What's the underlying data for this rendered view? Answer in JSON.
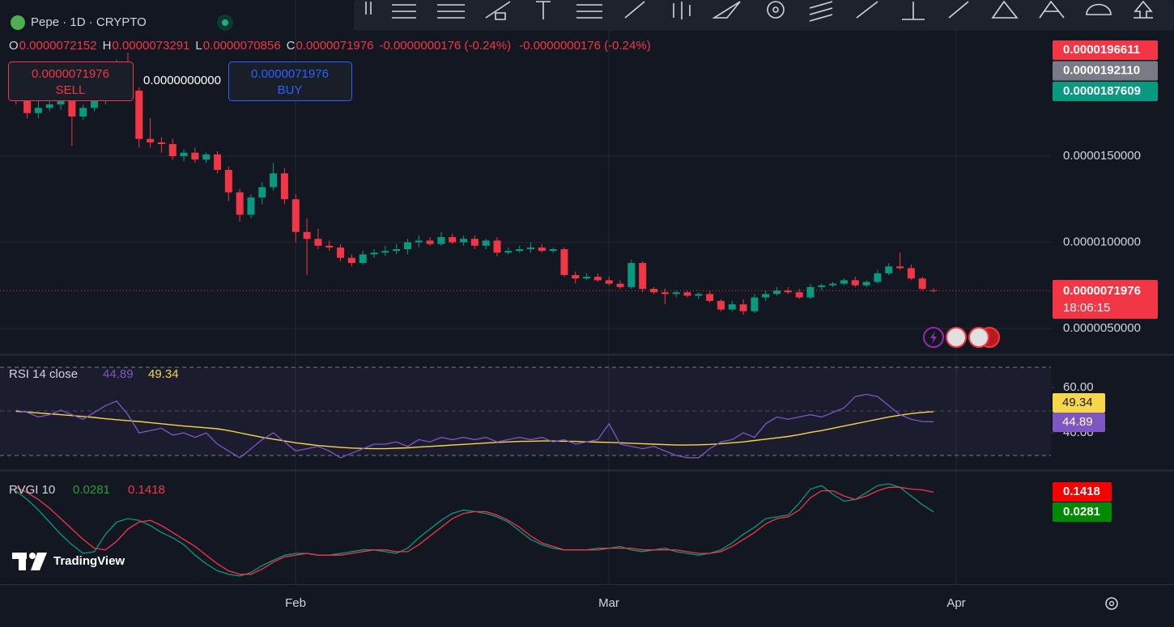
{
  "header": {
    "symbol": "Pepe · 1D · CRYPTO",
    "ohlc": [
      {
        "key": "O",
        "value": "0.0000072152"
      },
      {
        "key": "H",
        "value": "0.0000073291"
      },
      {
        "key": "L",
        "value": "0.0000070856"
      },
      {
        "key": "C",
        "value": "0.0000071976"
      }
    ],
    "changes": [
      "-0.0000000176 (-0.24%)",
      "-0.0000000176 (-0.24%)"
    ]
  },
  "trade": {
    "sell_price": "0.0000071976",
    "sell": "SELL",
    "spread": "0.0000000000",
    "buy_price": "0.0000071976",
    "buy": "BUY"
  },
  "price_pane": {
    "candles": [
      [
        1.98e-05,
        2e-05,
        1.8e-05,
        1.83e-05
      ],
      [
        1.83e-05,
        1.88e-05,
        1.72e-05,
        1.75e-05
      ],
      [
        1.75e-05,
        1.82e-05,
        1.72e-05,
        1.78e-05
      ],
      [
        1.78e-05,
        1.83e-05,
        1.76e-05,
        1.8e-05
      ],
      [
        1.8e-05,
        1.84e-05,
        1.77e-05,
        1.82e-05
      ],
      [
        1.82e-05,
        1.86e-05,
        1.56e-05,
        1.73e-05
      ],
      [
        1.73e-05,
        1.8e-05,
        1.71e-05,
        1.78e-05
      ],
      [
        1.78e-05,
        1.85e-05,
        1.76e-05,
        1.82e-05
      ],
      [
        1.82e-05,
        1.92e-05,
        1.8e-05,
        1.88e-05
      ],
      [
        1.88e-05,
        2.06e-05,
        1.86e-05,
        2.02e-05
      ],
      [
        2.02e-05,
        2.1e-05,
        1.85e-05,
        1.88e-05
      ],
      [
        1.88e-05,
        1.9e-05,
        1.55e-05,
        1.6e-05
      ],
      [
        1.6e-05,
        1.72e-05,
        1.55e-05,
        1.58e-05
      ],
      [
        1.58e-05,
        1.61e-05,
        1.52e-05,
        1.57e-05
      ],
      [
        1.57e-05,
        1.6e-05,
        1.48e-05,
        1.5e-05
      ],
      [
        1.5e-05,
        1.54e-05,
        1.47e-05,
        1.52e-05
      ],
      [
        1.52e-05,
        1.55e-05,
        1.46e-05,
        1.48e-05
      ],
      [
        1.48e-05,
        1.52e-05,
        1.46e-05,
        1.51e-05
      ],
      [
        1.51e-05,
        1.53e-05,
        1.4e-05,
        1.42e-05
      ],
      [
        1.42e-05,
        1.44e-05,
        1.24e-05,
        1.29e-05
      ],
      [
        1.29e-05,
        1.31e-05,
        1.12e-05,
        1.16e-05
      ],
      [
        1.16e-05,
        1.28e-05,
        1.14e-05,
        1.26e-05
      ],
      [
        1.26e-05,
        1.35e-05,
        1.22e-05,
        1.32e-05
      ],
      [
        1.32e-05,
        1.46e-05,
        1.3e-05,
        1.4e-05
      ],
      [
        1.4e-05,
        1.43e-05,
        1.22e-05,
        1.25e-05
      ],
      [
        1.25e-05,
        1.28e-05,
        1e-05,
        1.06e-05
      ],
      [
        1.06e-05,
        1.14e-05,
        8.1e-06,
        1.02e-05
      ],
      [
        1.02e-05,
        1.08e-05,
        9.6e-06,
        9.8e-06
      ],
      [
        9.8e-06,
        1.01e-05,
        9.5e-06,
        9.7e-06
      ],
      [
        9.7e-06,
        9.9e-06,
        8.9e-06,
        9.1e-06
      ],
      [
        9.1e-06,
        9.3e-06,
        8.6e-06,
        8.8e-06
      ],
      [
        8.8e-06,
        9.5e-06,
        8.7e-06,
        9.3e-06
      ],
      [
        9.3e-06,
        9.6e-06,
        9.1e-06,
        9.4e-06
      ],
      [
        9.4e-06,
        9.8e-06,
        9.2e-06,
        9.5e-06
      ],
      [
        9.5e-06,
        9.9e-06,
        9.3e-06,
        9.6e-06
      ],
      [
        9.6e-06,
        1.02e-05,
        9.3e-06,
        1e-05
      ],
      [
        1e-05,
        1.04e-05,
        9.7e-06,
        1.01e-05
      ],
      [
        1.01e-05,
        1.03e-05,
        9.8e-06,
        9.9e-06
      ],
      [
        9.9e-06,
        1.06e-05,
        9.8e-06,
        1.03e-05
      ],
      [
        1.03e-05,
        1.05e-05,
        9.9e-06,
        1e-05
      ],
      [
        1e-05,
        1.04e-05,
        9.8e-06,
        1.02e-05
      ],
      [
        1.02e-05,
        1.04e-05,
        9.6e-06,
        9.8e-06
      ],
      [
        9.8e-06,
        1.02e-05,
        9.6e-06,
        1.01e-05
      ],
      [
        1.01e-05,
        1.03e-05,
        9.2e-06,
        9.4e-06
      ],
      [
        9.4e-06,
        9.7e-06,
        9.3e-06,
        9.5e-06
      ],
      [
        9.5e-06,
        9.8e-06,
        9.4e-06,
        9.6e-06
      ],
      [
        9.6e-06,
        1e-05,
        9.4e-06,
        9.7e-06
      ],
      [
        9.7e-06,
        9.9e-06,
        9.4e-06,
        9.5e-06
      ],
      [
        9.5e-06,
        9.7e-06,
        9.4e-06,
        9.6e-06
      ],
      [
        9.6e-06,
        9.7e-06,
        8e-06,
        8.1e-06
      ],
      [
        8.1e-06,
        8.3e-06,
        7.6e-06,
        7.9e-06
      ],
      [
        7.9e-06,
        8.2e-06,
        7.8e-06,
        8e-06
      ],
      [
        8e-06,
        8.2e-06,
        7.7e-06,
        7.8e-06
      ],
      [
        7.8e-06,
        8e-06,
        7.5e-06,
        7.6e-06
      ],
      [
        7.6e-06,
        7.8e-06,
        7.3e-06,
        7.4e-06
      ],
      [
        7.4e-06,
        9e-06,
        7.3e-06,
        8.8e-06
      ],
      [
        8.8e-06,
        8.9e-06,
        7.1e-06,
        7.3e-06
      ],
      [
        7.3e-06,
        7.4e-06,
        7e-06,
        7.1e-06
      ],
      [
        7.1e-06,
        7.3e-06,
        6.4e-06,
        7e-06
      ],
      [
        7e-06,
        7.2e-06,
        6.8e-06,
        7.1e-06
      ],
      [
        7.1e-06,
        7.2e-06,
        6.8e-06,
        6.9e-06
      ],
      [
        6.9e-06,
        7.1e-06,
        6.7e-06,
        7e-06
      ],
      [
        7e-06,
        7.2e-06,
        6.5e-06,
        6.6e-06
      ],
      [
        6.6e-06,
        6.7e-06,
        6e-06,
        6.1e-06
      ],
      [
        6.1e-06,
        6.6e-06,
        6e-06,
        6.4e-06
      ],
      [
        6.4e-06,
        6.7e-06,
        5.8e-06,
        6e-06
      ],
      [
        6e-06,
        7e-06,
        5.9e-06,
        6.8e-06
      ],
      [
        6.8e-06,
        7.2e-06,
        6.6e-06,
        7e-06
      ],
      [
        7e-06,
        7.4e-06,
        6.9e-06,
        7.2e-06
      ],
      [
        7.2e-06,
        7.4e-06,
        7e-06,
        7.1e-06
      ],
      [
        7.1e-06,
        7.3e-06,
        6.7e-06,
        6.8e-06
      ],
      [
        6.8e-06,
        7.6e-06,
        6.7e-06,
        7.4e-06
      ],
      [
        7.4e-06,
        7.6e-06,
        7.2e-06,
        7.5e-06
      ],
      [
        7.5e-06,
        7.7e-06,
        7.4e-06,
        7.6e-06
      ],
      [
        7.6e-06,
        7.9e-06,
        7.5e-06,
        7.8e-06
      ],
      [
        7.8e-06,
        8e-06,
        7.4e-06,
        7.5e-06
      ],
      [
        7.5e-06,
        7.8e-06,
        7.4e-06,
        7.7e-06
      ],
      [
        7.7e-06,
        8.4e-06,
        7.6e-06,
        8.2e-06
      ],
      [
        8.2e-06,
        8.8e-06,
        8.1e-06,
        8.6e-06
      ],
      [
        8.6e-06,
        9.4e-06,
        8.4e-06,
        8.5e-06
      ],
      [
        8.5e-06,
        8.7e-06,
        7.8e-06,
        7.9e-06
      ],
      [
        7.9e-06,
        8e-06,
        7.2e-06,
        7.3e-06
      ],
      [
        7.2152e-06,
        7.3291e-06,
        7.0856e-06,
        7.1976e-06
      ]
    ],
    "yticks": [
      {
        "value": 1.5e-05,
        "label": "0.0000150000"
      },
      {
        "value": 1e-05,
        "label": "0.0000100000"
      },
      {
        "value": 5e-06,
        "label": "0.0000050000"
      }
    ],
    "tags": [
      "0.0000196611",
      "0.0000192110",
      "0.0000187609"
    ],
    "last_price": "0.0000071976",
    "countdown": "18:06:15"
  },
  "rsi": {
    "label": "RSI 14 close",
    "rsi_value": "44.89",
    "ma_value": "49.34",
    "rsi": [
      50,
      49,
      47,
      48,
      50,
      48,
      46,
      49,
      52,
      54,
      48,
      40,
      41,
      42,
      39,
      40,
      38,
      40,
      35,
      32,
      29,
      33,
      37,
      40,
      36,
      32,
      33,
      34,
      32,
      29,
      31,
      33,
      35,
      35,
      36,
      34,
      37,
      36,
      38,
      37,
      38,
      37,
      38,
      36,
      37,
      38,
      37,
      38,
      36,
      37,
      35,
      36,
      37,
      44,
      35,
      34,
      33,
      34,
      32,
      30,
      29,
      29,
      33,
      36,
      37,
      40,
      38,
      44,
      47,
      46,
      47,
      48,
      47,
      49,
      51,
      56,
      57,
      56,
      52,
      48,
      46,
      45,
      44.89
    ],
    "ma": [
      49.5,
      49.2,
      48.8,
      48.4,
      48,
      47.6,
      47.2,
      46.8,
      46.2,
      45.8,
      45.4,
      45,
      44.5,
      44,
      43.5,
      43,
      42.6,
      42.2,
      41.8,
      41,
      40,
      39,
      38,
      37.2,
      36.4,
      35.6,
      35,
      34.4,
      34,
      33.6,
      33.3,
      33.1,
      33,
      33,
      33.2,
      33.4,
      33.7,
      34,
      34.3,
      34.6,
      34.9,
      35.2,
      35.5,
      35.8,
      36,
      36.2,
      36.3,
      36.4,
      36.4,
      36.3,
      36.2,
      36,
      35.9,
      35.8,
      35.6,
      35.4,
      35.2,
      35,
      34.8,
      34.6,
      34.6,
      34.7,
      34.9,
      35.2,
      35.6,
      36,
      36.6,
      37.2,
      37.8,
      38.4,
      39.2,
      40.2,
      41,
      42,
      43,
      44,
      45,
      46,
      47,
      47.8,
      48.5,
      49,
      49.34
    ],
    "yticks": [
      {
        "value": 60,
        "label": "60.00"
      },
      {
        "value": 40,
        "label": "40.00"
      }
    ],
    "tags": [
      "49.34",
      "44.89"
    ]
  },
  "rvgi": {
    "label": "RVGI 10",
    "signal_value": "0.0281",
    "rvgi_value": "0.1418",
    "green": [
      0.15,
      0.1,
      0.04,
      -0.03,
      -0.1,
      -0.16,
      -0.21,
      -0.2,
      -0.1,
      -0.03,
      -0.01,
      -0.02,
      -0.05,
      -0.09,
      -0.12,
      -0.16,
      -0.22,
      -0.27,
      -0.31,
      -0.33,
      -0.34,
      -0.32,
      -0.28,
      -0.25,
      -0.22,
      -0.21,
      -0.21,
      -0.22,
      -0.22,
      -0.21,
      -0.2,
      -0.19,
      -0.19,
      -0.2,
      -0.21,
      -0.18,
      -0.12,
      -0.07,
      -0.02,
      0.02,
      0.04,
      0.03,
      0.02,
      0.0,
      -0.03,
      -0.08,
      -0.13,
      -0.16,
      -0.18,
      -0.19,
      -0.19,
      -0.19,
      -0.18,
      -0.18,
      -0.17,
      -0.19,
      -0.2,
      -0.19,
      -0.18,
      -0.2,
      -0.21,
      -0.22,
      -0.21,
      -0.19,
      -0.15,
      -0.1,
      -0.06,
      -0.01,
      0.0,
      0.01,
      0.08,
      0.16,
      0.18,
      0.13,
      0.09,
      0.1,
      0.14,
      0.18,
      0.19,
      0.17,
      0.12,
      0.07,
      0.0281
    ],
    "red": [
      0.17,
      0.14,
      0.1,
      0.05,
      -0.01,
      -0.07,
      -0.13,
      -0.18,
      -0.19,
      -0.14,
      -0.07,
      -0.03,
      -0.02,
      -0.05,
      -0.09,
      -0.13,
      -0.17,
      -0.22,
      -0.27,
      -0.31,
      -0.33,
      -0.33,
      -0.3,
      -0.26,
      -0.23,
      -0.22,
      -0.21,
      -0.22,
      -0.22,
      -0.22,
      -0.21,
      -0.2,
      -0.19,
      -0.19,
      -0.2,
      -0.2,
      -0.16,
      -0.11,
      -0.06,
      -0.01,
      0.02,
      0.03,
      0.03,
      0.01,
      -0.02,
      -0.06,
      -0.11,
      -0.15,
      -0.17,
      -0.19,
      -0.19,
      -0.19,
      -0.19,
      -0.18,
      -0.18,
      -0.18,
      -0.19,
      -0.19,
      -0.19,
      -0.19,
      -0.2,
      -0.21,
      -0.21,
      -0.2,
      -0.17,
      -0.13,
      -0.09,
      -0.04,
      -0.01,
      0.0,
      0.04,
      0.11,
      0.15,
      0.15,
      0.12,
      0.1,
      0.12,
      0.15,
      0.17,
      0.17,
      0.16,
      0.155,
      0.1418
    ],
    "tags": [
      "0.1418",
      "0.0281"
    ]
  },
  "x_axis": {
    "labels": [
      "Feb",
      "Mar",
      "Apr"
    ]
  },
  "logo": "TradingView"
}
